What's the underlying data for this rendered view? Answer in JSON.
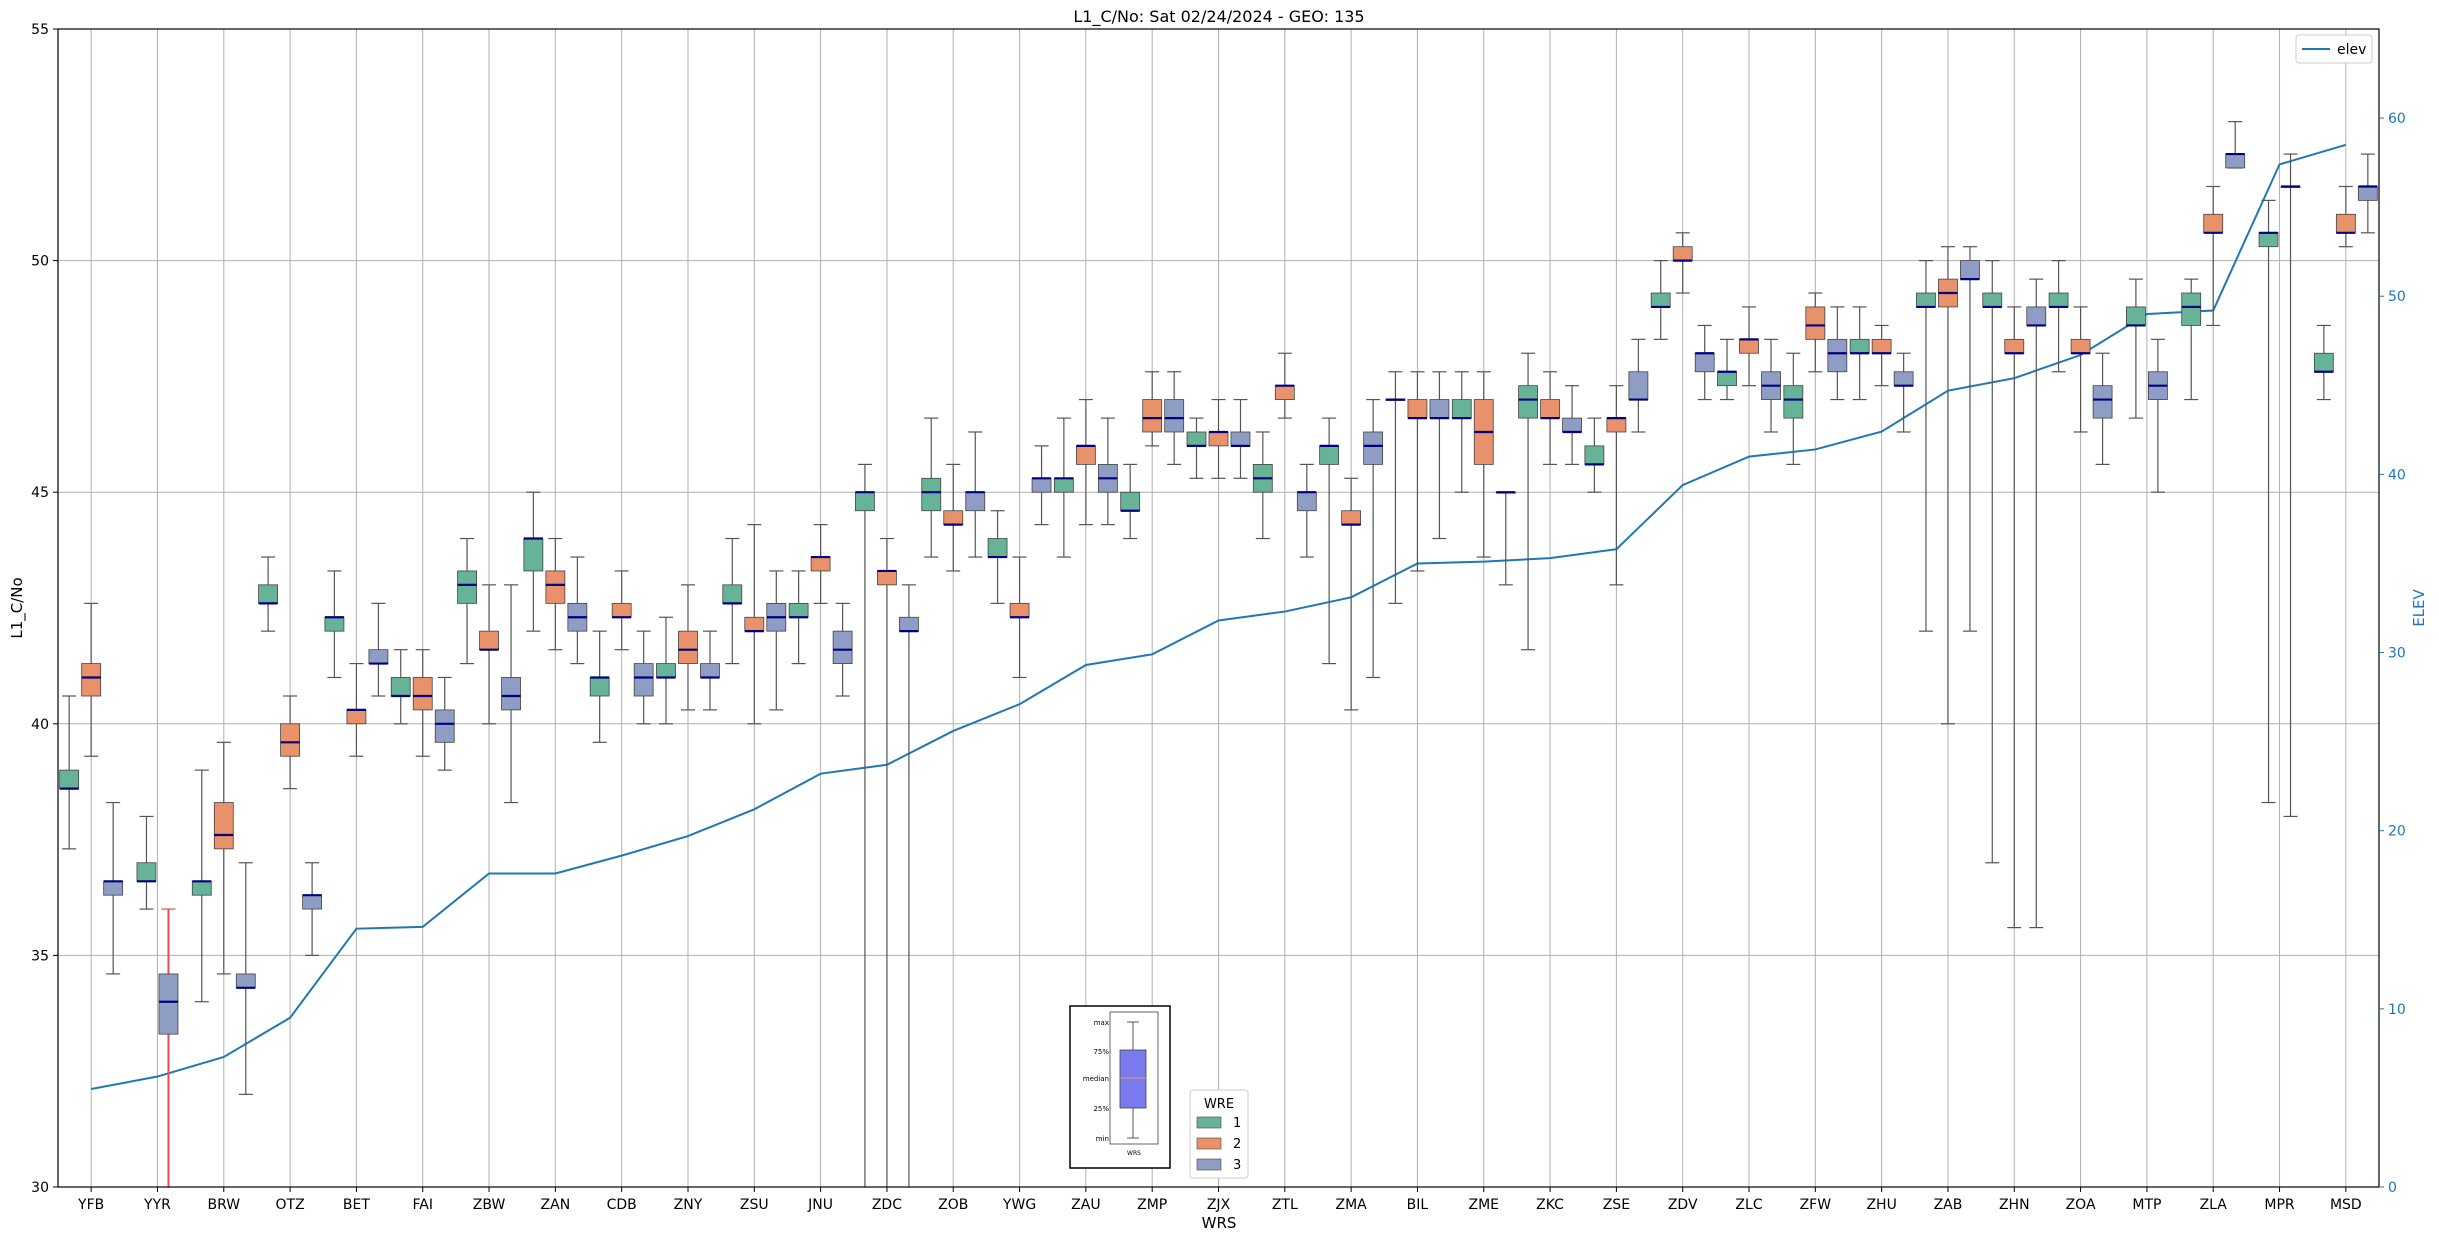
{
  "chart_data": {
    "type": "box",
    "title": "L1_C/No: Sat 02/24/2024 - GEO: 135",
    "xlabel": "WRS",
    "ylabel": "L1_C/No",
    "y2label": "ELEV",
    "ylim": [
      30,
      55
    ],
    "y2lim": [
      0,
      65
    ],
    "yticks": [
      30,
      35,
      40,
      45,
      50,
      55
    ],
    "y2ticks": [
      0,
      10,
      20,
      30,
      40,
      50,
      60
    ],
    "grid": true,
    "colors": {
      "wre1": "#66b398",
      "wre2": "#e8916b",
      "wre3": "#8f9cc3",
      "elev": "#1f77b4",
      "median": "#000080",
      "whisker": "#555555",
      "highlight": "#e05050"
    },
    "categories": [
      "YFB",
      "YYR",
      "BRW",
      "OTZ",
      "BET",
      "FAI",
      "ZBW",
      "ZAN",
      "CDB",
      "ZNY",
      "ZSU",
      "JNU",
      "ZDC",
      "ZOB",
      "YWG",
      "ZAU",
      "ZMP",
      "ZJX",
      "ZTL",
      "ZMA",
      "BIL",
      "ZME",
      "ZKC",
      "ZSE",
      "ZDV",
      "ZLC",
      "ZFW",
      "ZHU",
      "ZAB",
      "ZHN",
      "ZOA",
      "MTP",
      "ZLA",
      "MPR",
      "MSD"
    ],
    "elev_series": {
      "name": "elev",
      "values": [
        5.5,
        6.2,
        7.3,
        9.5,
        14.5,
        14.6,
        17.6,
        17.6,
        18.6,
        19.7,
        21.2,
        23.2,
        23.7,
        25.6,
        27.1,
        29.3,
        29.9,
        31.8,
        32.3,
        33.1,
        35.0,
        35.1,
        35.3,
        35.8,
        39.4,
        41.0,
        41.4,
        42.4,
        44.7,
        45.4,
        46.7,
        49.0,
        49.2,
        57.4,
        58.5
      ]
    },
    "series": [
      {
        "name": "1",
        "boxes": {
          "YFB": [
            37.3,
            38.6,
            38.6,
            39.0,
            40.6
          ],
          "YYR": [
            36.0,
            36.6,
            36.6,
            37.0,
            38.0
          ],
          "BRW": [
            34.0,
            36.3,
            36.6,
            36.6,
            39.0
          ],
          "OTZ": [
            42.0,
            42.6,
            42.6,
            43.0,
            43.6
          ],
          "BET": [
            41.0,
            42.0,
            42.3,
            42.3,
            43.3
          ],
          "FAI": [
            40.0,
            40.6,
            40.6,
            41.0,
            41.6
          ],
          "ZBW": [
            41.3,
            42.6,
            43.0,
            43.3,
            44.0
          ],
          "ZAN": [
            42.0,
            43.3,
            44.0,
            44.0,
            45.0
          ],
          "CDB": [
            39.6,
            40.6,
            41.0,
            41.0,
            42.0
          ],
          "ZNY": [
            40.0,
            41.0,
            41.0,
            41.3,
            42.3
          ],
          "ZSU": [
            41.3,
            42.6,
            42.6,
            43.0,
            44.0
          ],
          "JNU": [
            41.3,
            42.3,
            42.3,
            42.6,
            43.3
          ],
          "ZDC": [
            30.0,
            44.6,
            45.0,
            45.0,
            45.6
          ],
          "ZOB": [
            43.6,
            44.6,
            45.0,
            45.3,
            46.6
          ],
          "YWG": [
            42.6,
            43.6,
            43.6,
            44.0,
            44.6
          ],
          "ZAU": [
            43.6,
            45.0,
            45.3,
            45.3,
            46.6
          ],
          "ZMP": [
            44.0,
            44.6,
            44.6,
            45.0,
            45.6
          ],
          "ZJX": [
            45.3,
            46.0,
            46.0,
            46.3,
            46.6
          ],
          "ZTL": [
            44.0,
            45.0,
            45.3,
            45.6,
            46.3
          ],
          "ZMA": [
            41.3,
            45.6,
            46.0,
            46.0,
            46.6
          ],
          "BIL": [
            42.6,
            47.0,
            47.0,
            47.0,
            47.6
          ],
          "ZME": [
            45.0,
            46.6,
            46.6,
            47.0,
            47.6
          ],
          "ZKC": [
            41.6,
            46.6,
            47.0,
            47.3,
            48.0
          ],
          "ZSE": [
            45.0,
            45.6,
            45.6,
            46.0,
            46.6
          ],
          "ZDV": [
            48.3,
            49.0,
            49.0,
            49.3,
            50.0
          ],
          "ZLC": [
            47.0,
            47.3,
            47.6,
            47.6,
            48.3
          ],
          "ZFW": [
            45.6,
            46.6,
            47.0,
            47.3,
            48.0
          ],
          "ZHU": [
            47.0,
            48.0,
            48.0,
            48.3,
            49.0
          ],
          "ZAB": [
            42.0,
            49.0,
            49.0,
            49.3,
            50.0
          ],
          "ZHN": [
            37.0,
            49.0,
            49.0,
            49.3,
            50.0
          ],
          "ZOA": [
            47.6,
            49.0,
            49.0,
            49.3,
            50.0
          ],
          "MTP": [
            46.6,
            48.6,
            48.6,
            49.0,
            49.6
          ],
          "ZLA": [
            47.0,
            48.6,
            49.0,
            49.3,
            49.6
          ],
          "MPR": [
            38.3,
            50.3,
            50.6,
            50.6,
            51.3
          ],
          "MSD": [
            47.0,
            47.6,
            47.6,
            48.0,
            48.6
          ]
        }
      },
      {
        "name": "2",
        "boxes": {
          "YFB": [
            39.3,
            40.6,
            41.0,
            41.3,
            42.6
          ],
          "BRW": [
            34.6,
            37.3,
            37.6,
            38.3,
            39.6
          ],
          "OTZ": [
            38.6,
            39.3,
            39.6,
            40.0,
            40.6
          ],
          "BET": [
            39.3,
            40.0,
            40.3,
            40.3,
            41.3
          ],
          "FAI": [
            39.3,
            40.3,
            40.6,
            41.0,
            41.6
          ],
          "ZBW": [
            40.0,
            41.6,
            41.6,
            42.0,
            43.0
          ],
          "ZAN": [
            41.6,
            42.6,
            43.0,
            43.3,
            44.0
          ],
          "CDB": [
            41.6,
            42.3,
            42.3,
            42.6,
            43.3
          ],
          "ZNY": [
            40.3,
            41.3,
            41.6,
            42.0,
            43.0
          ],
          "ZSU": [
            40.0,
            42.0,
            42.0,
            42.3,
            44.3
          ],
          "JNU": [
            42.6,
            43.3,
            43.6,
            43.6,
            44.3
          ],
          "ZDC": [
            30.0,
            43.0,
            43.3,
            43.3,
            44.0
          ],
          "ZOB": [
            43.3,
            44.3,
            44.3,
            44.6,
            45.6
          ],
          "YWG": [
            41.0,
            42.3,
            42.3,
            42.6,
            43.6
          ],
          "ZAU": [
            44.3,
            45.6,
            46.0,
            46.0,
            47.0
          ],
          "ZMP": [
            46.0,
            46.3,
            46.6,
            47.0,
            47.6
          ],
          "ZJX": [
            45.3,
            46.0,
            46.3,
            46.3,
            47.0
          ],
          "ZTL": [
            46.6,
            47.0,
            47.3,
            47.3,
            48.0
          ],
          "ZMA": [
            40.3,
            44.3,
            44.3,
            44.6,
            45.3
          ],
          "BIL": [
            43.3,
            46.6,
            46.6,
            47.0,
            47.6
          ],
          "ZME": [
            43.6,
            45.6,
            46.3,
            47.0,
            47.6
          ],
          "ZKC": [
            45.6,
            46.6,
            46.6,
            47.0,
            47.6
          ],
          "ZSE": [
            43.0,
            46.3,
            46.6,
            46.6,
            47.3
          ],
          "ZDV": [
            49.3,
            50.0,
            50.0,
            50.3,
            50.6
          ],
          "ZLC": [
            47.3,
            48.0,
            48.3,
            48.3,
            49.0
          ],
          "ZFW": [
            47.6,
            48.3,
            48.6,
            49.0,
            49.3
          ],
          "ZHU": [
            47.3,
            48.0,
            48.0,
            48.3,
            48.6
          ],
          "ZAB": [
            40.0,
            49.0,
            49.3,
            49.6,
            50.3
          ],
          "ZHN": [
            35.6,
            48.0,
            48.0,
            48.3,
            49.0
          ],
          "ZOA": [
            46.3,
            48.0,
            48.0,
            48.3,
            49.0
          ],
          "ZLA": [
            48.6,
            50.6,
            50.6,
            51.0,
            51.6
          ],
          "MSD": [
            50.3,
            50.6,
            50.6,
            51.0,
            51.6
          ]
        }
      },
      {
        "name": "3",
        "boxes": {
          "YFB": [
            34.6,
            36.3,
            36.6,
            36.6,
            38.3
          ],
          "YYR": [
            30.0,
            33.3,
            34.0,
            34.6,
            36.0
          ],
          "BRW": [
            32.0,
            34.3,
            34.3,
            34.6,
            37.0
          ],
          "OTZ": [
            35.0,
            36.0,
            36.3,
            36.3,
            37.0
          ],
          "BET": [
            40.6,
            41.3,
            41.3,
            41.6,
            42.6
          ],
          "FAI": [
            39.0,
            39.6,
            40.0,
            40.3,
            41.0
          ],
          "ZBW": [
            38.3,
            40.3,
            40.6,
            41.0,
            43.0
          ],
          "ZAN": [
            41.3,
            42.0,
            42.3,
            42.6,
            43.6
          ],
          "CDB": [
            40.0,
            40.6,
            41.0,
            41.3,
            42.0
          ],
          "ZNY": [
            40.3,
            41.0,
            41.0,
            41.3,
            42.0
          ],
          "ZSU": [
            40.3,
            42.0,
            42.3,
            42.6,
            43.3
          ],
          "JNU": [
            40.6,
            41.3,
            41.6,
            42.0,
            42.6
          ],
          "ZDC": [
            30.0,
            42.0,
            42.0,
            42.3,
            43.0
          ],
          "ZOB": [
            43.6,
            44.6,
            45.0,
            45.0,
            46.3
          ],
          "YWG": [
            44.3,
            45.0,
            45.3,
            45.3,
            46.0
          ],
          "ZAU": [
            44.3,
            45.0,
            45.3,
            45.6,
            46.6
          ],
          "ZMP": [
            45.6,
            46.3,
            46.6,
            47.0,
            47.6
          ],
          "ZJX": [
            45.3,
            46.0,
            46.0,
            46.3,
            47.0
          ],
          "ZTL": [
            43.6,
            44.6,
            45.0,
            45.0,
            45.6
          ],
          "ZMA": [
            41.0,
            45.6,
            46.0,
            46.3,
            47.0
          ],
          "BIL": [
            44.0,
            46.6,
            46.6,
            47.0,
            47.6
          ],
          "ZME": [
            43.0,
            45.0,
            45.0,
            45.0,
            45.0
          ],
          "ZKC": [
            45.6,
            46.3,
            46.3,
            46.6,
            47.3
          ],
          "ZSE": [
            46.3,
            47.0,
            47.0,
            47.6,
            48.3
          ],
          "ZDV": [
            47.0,
            47.6,
            48.0,
            48.0,
            48.6
          ],
          "ZLC": [
            46.3,
            47.0,
            47.3,
            47.6,
            48.3
          ],
          "ZFW": [
            47.0,
            47.6,
            48.0,
            48.3,
            49.0
          ],
          "ZHU": [
            46.3,
            47.3,
            47.3,
            47.6,
            48.0
          ],
          "ZAB": [
            42.0,
            49.6,
            49.6,
            50.0,
            50.3
          ],
          "ZHN": [
            35.6,
            48.6,
            48.6,
            49.0,
            49.6
          ],
          "ZOA": [
            45.6,
            46.6,
            47.0,
            47.3,
            48.0
          ],
          "MTP": [
            45.0,
            47.0,
            47.3,
            47.6,
            48.3
          ],
          "ZLA": [
            52.0,
            52.0,
            52.3,
            52.3,
            53.0
          ],
          "MPR": [
            38.0,
            51.6,
            51.6,
            51.6,
            52.3
          ],
          "MSD": [
            50.6,
            51.3,
            51.6,
            51.6,
            52.3
          ]
        }
      }
    ],
    "legend": {
      "title": "WRE",
      "entries": [
        "1",
        "2",
        "3"
      ],
      "placement": "bottom-center"
    },
    "line_legend": {
      "entries": [
        "elev"
      ],
      "placement": "top-right"
    },
    "inset": {
      "labels": [
        "max",
        "75%",
        "median",
        "25%",
        "min"
      ],
      "xlabel": "WRS"
    }
  }
}
